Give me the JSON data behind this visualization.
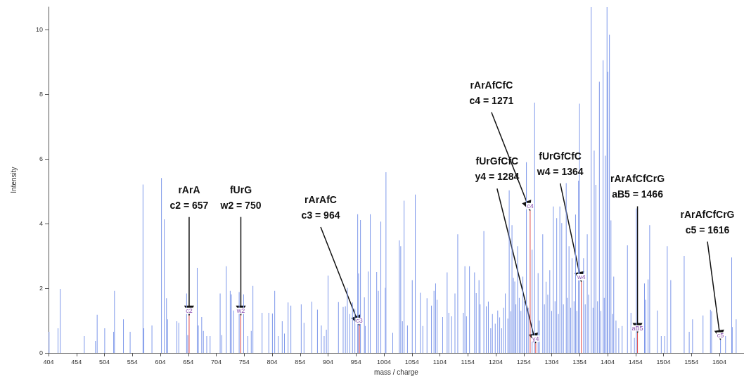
{
  "chart_data": {
    "type": "bar",
    "xlabel": "mass / charge",
    "ylabel": "Intensity",
    "xlim": [
      404,
      1648
    ],
    "ylim": [
      0,
      10.7
    ],
    "xticks": [
      404,
      454,
      504,
      554,
      604,
      654,
      704,
      754,
      804,
      854,
      904,
      954,
      1004,
      1054,
      1104,
      1154,
      1204,
      1254,
      1304,
      1354,
      1404,
      1454,
      1504,
      1554,
      1604
    ],
    "yticks": [
      0,
      2,
      4,
      6,
      8,
      10
    ],
    "grid": false,
    "series": [
      {
        "color": "#7e98ea",
        "x": [
          405,
          421,
          425,
          468,
          488,
          491,
          504.5,
          520.5,
          522,
          538,
          550,
          573,
          574.5,
          589,
          606,
          611,
          615,
          617,
          633.6,
          637,
          651,
          653,
          670,
          672,
          678,
          681,
          687,
          693,
          711,
          714,
          722,
          729,
          731,
          735,
          745,
          753,
          760.5,
          766.6,
          769.6,
          786,
          798,
          804.5,
          808.6,
          815,
          822,
          826,
          832.5,
          837.5,
          856,
          861,
          875,
          885,
          892,
          897,
          901,
          904,
          922.6,
          931,
          935,
          938.5,
          943,
          947.7,
          952,
          957,
          958.5,
          962,
          969,
          970.5,
          975.8,
          979.5,
          991,
          994,
          998.4,
          1006.4,
          1007.6,
          1019.7,
          1031.5,
          1034,
          1037,
          1040,
          1046,
          1054.6,
          1060,
          1069,
          1073.5,
          1081,
          1089,
          1093.5,
          1096.4,
          1099,
          1109,
          1117,
          1120,
          1125,
          1131,
          1136,
          1146,
          1148.8,
          1151.6,
          1157,
          1166,
          1169,
          1174,
          1176,
          1182.7,
          1187,
          1190.7,
          1195,
          1198,
          1203,
          1207.5,
          1211,
          1214.5,
          1218,
          1221,
          1225.6,
          1228,
          1231,
          1233,
          1235.6,
          1238,
          1240,
          1243,
          1246,
          1249,
          1252.5,
          1255,
          1258.8,
          1262,
          1269,
          1273.5,
          1279.7,
          1282,
          1288,
          1291,
          1294,
          1297,
          1300.6,
          1304,
          1307,
          1310,
          1313,
          1316,
          1318.6,
          1322,
          1325,
          1330,
          1332,
          1335,
          1338,
          1340.4,
          1344,
          1346.7,
          1349,
          1352,
          1353.8,
          1361,
          1364,
          1367.6,
          1370,
          1374.7,
          1378,
          1380,
          1383,
          1386,
          1389.3,
          1392,
          1396,
          1398,
          1400,
          1403,
          1404.5,
          1407.3,
          1410,
          1413,
          1415,
          1419,
          1424,
          1430,
          1439.5,
          1445.8,
          1452,
          1455.5,
          1470,
          1472,
          1476.4,
          1479.3,
          1493,
          1500,
          1506,
          1510.7,
          1517,
          1541,
          1550,
          1556,
          1574.7,
          1588,
          1590,
          1615,
          1626,
          1627,
          1634
        ],
        "values": [
          0.65,
          0.76,
          1.98,
          0.52,
          0.37,
          1.18,
          0.76,
          0.65,
          1.92,
          1.04,
          0.65,
          5.21,
          0.76,
          0.85,
          5.41,
          4.13,
          1.69,
          1.04,
          0.98,
          0.93,
          1.84,
          0.55,
          2.63,
          0.85,
          1.11,
          0.68,
          0.52,
          0.52,
          1.84,
          0.55,
          2.68,
          1.92,
          1.81,
          1.31,
          1.88,
          1.81,
          0.52,
          0.68,
          2.07,
          1.24,
          1.24,
          1.22,
          1.92,
          0.52,
          0.98,
          0.6,
          1.56,
          1.46,
          1.5,
          0.93,
          1.58,
          1.34,
          0.85,
          0.52,
          0.72,
          2.39,
          1.57,
          1.42,
          1.44,
          2.01,
          1.2,
          1.56,
          1.36,
          4.29,
          2.46,
          4.11,
          1.72,
          0.83,
          2.52,
          4.29,
          2.5,
          1.92,
          4.06,
          2.01,
          5.59,
          0.62,
          3.48,
          3.3,
          0.98,
          4.71,
          0.85,
          2.25,
          4.9,
          1.86,
          0.83,
          1.69,
          1.46,
          1.92,
          2.15,
          1.64,
          1.11,
          2.49,
          1.24,
          1.13,
          1.84,
          3.67,
          1.24,
          2.68,
          1.13,
          2.68,
          2.49,
          1.85,
          2.25,
          1.5,
          3.77,
          1.44,
          1.59,
          0.76,
          1.2,
          0.9,
          1.31,
          1.1,
          0.76,
          1.4,
          1.84,
          1.06,
          5.03,
          1.29,
          3.95,
          2.32,
          2.21,
          1.5,
          3.3,
          1.7,
          1.3,
          2.36,
          1.6,
          5.9,
          1.4,
          3.19,
          7.74,
          2.47,
          1.0,
          3.67,
          1.5,
          2.2,
          1.8,
          2.56,
          1.3,
          4.53,
          1.6,
          4.17,
          1.2,
          4.53,
          4.02,
          1.5,
          5.25,
          1.7,
          3.3,
          1.4,
          2.93,
          1.6,
          4.28,
          1.3,
          5.33,
          7.71,
          2.93,
          1.5,
          3.67,
          1.8,
          10.7,
          1.4,
          6.26,
          5.2,
          1.6,
          8.39,
          1.3,
          9.05,
          1.7,
          6.1,
          10.7,
          8.7,
          9.84,
          4.1,
          1.2,
          2.36,
          1.0,
          0.76,
          0.83,
          3.33,
          1.24,
          0.46,
          4.47,
          2.15,
          1.64,
          2.27,
          3.95,
          1.31,
          0.52,
          0.52,
          3.3,
          2.25,
          3.0,
          0.65,
          1.04,
          1.16,
          1.33,
          1.29,
          0.52,
          2.95,
          0.8,
          1.04
        ]
      },
      {
        "color": "#e04848",
        "x": [
          655.5,
          748,
          960,
          1265.5,
          1275.5,
          1357,
          1457.5,
          1606
        ],
        "values": [
          1.16,
          1.16,
          0.85,
          4.4,
          0.3,
          2.2,
          0.62,
          0.4
        ],
        "colors": [
          "#e04848",
          "#e04848",
          "#e04848",
          "#e04848",
          "#e04848",
          "#e04848",
          "#e04848",
          "#7e98ea"
        ],
        "value_labels": [
          "c2",
          "w2",
          "c3",
          "c4",
          "y4",
          "w4",
          "aB5",
          "c5"
        ]
      }
    ],
    "annotations": [
      {
        "text": "rArA\nc2 = 657",
        "x": 655.5,
        "y": 1.16
      },
      {
        "text": "fUrG\nw2 = 750",
        "x": 748,
        "y": 1.16
      },
      {
        "text": "rArAfC\nc3 = 964",
        "x": 960,
        "y": 0.85
      },
      {
        "text": "rArAfCfC\nc4 = 1271",
        "x": 1265.5,
        "y": 4.4
      },
      {
        "text": "fUrGfCfC\ny4 = 1284",
        "x": 1275.5,
        "y": 0.3
      },
      {
        "text": "fUrGfCfC\nw4 = 1364",
        "x": 1357,
        "y": 2.2
      },
      {
        "text": "rArAfCfCrG\naB5 = 1466",
        "x": 1457.5,
        "y": 0.62
      },
      {
        "text": "rArAfCfCrG\nc5 = 1616",
        "x": 1606,
        "y": 0.4
      }
    ]
  }
}
